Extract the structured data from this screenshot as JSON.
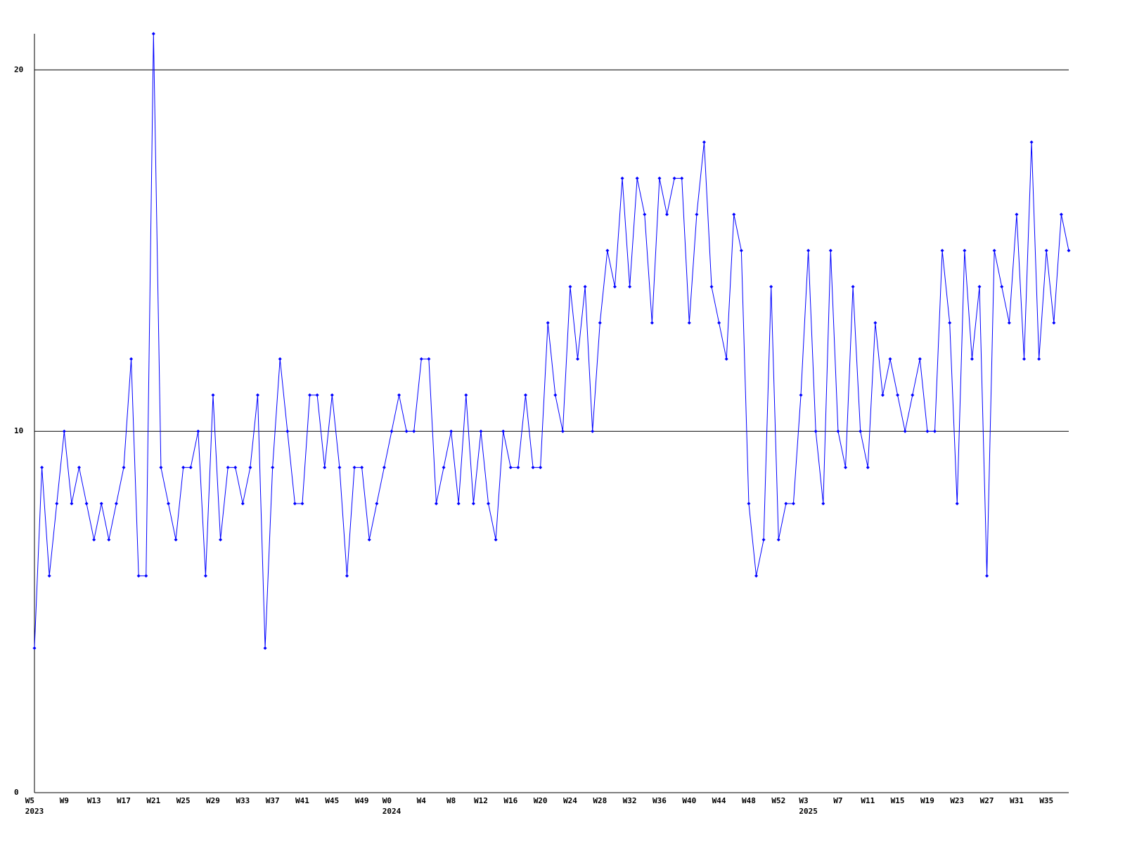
{
  "chart_data": {
    "type": "line",
    "categories": [
      "W5\n2023",
      null,
      null,
      null,
      "W9",
      null,
      null,
      null,
      "W13",
      null,
      null,
      null,
      "W17",
      null,
      null,
      null,
      "W21",
      null,
      null,
      null,
      "W25",
      null,
      null,
      null,
      "W29",
      null,
      null,
      null,
      "W33",
      null,
      null,
      null,
      "W37",
      null,
      null,
      null,
      "W41",
      null,
      null,
      null,
      "W45",
      null,
      null,
      null,
      "W49",
      null,
      null,
      null,
      "W0\n2024",
      null,
      null,
      null,
      "W4",
      null,
      null,
      null,
      "W8",
      null,
      null,
      null,
      "W12",
      null,
      null,
      null,
      "W16",
      null,
      null,
      null,
      "W20",
      null,
      null,
      null,
      "W24",
      null,
      null,
      null,
      "W28",
      null,
      null,
      null,
      "W32",
      null,
      null,
      null,
      "W36",
      null,
      null,
      null,
      "W40",
      null,
      null,
      null,
      "W44",
      null,
      null,
      null,
      "W48",
      null,
      null,
      null,
      "W52",
      null,
      null,
      null,
      "W3\n2025",
      null,
      null,
      null,
      "W7",
      null,
      null,
      null,
      "W11",
      null,
      null,
      null,
      "W15",
      null,
      null,
      null,
      "W19",
      null,
      null,
      null,
      "W23",
      null,
      null,
      null,
      "W27",
      null,
      null,
      null,
      "W31",
      null,
      null,
      null,
      "W35",
      null,
      null,
      null
    ],
    "series": [
      {
        "color": "#0000ff",
        "values": [
          4,
          9,
          6,
          8,
          10,
          8,
          9,
          8,
          7,
          8,
          7,
          8,
          9,
          12,
          6,
          6,
          21,
          9,
          8,
          7,
          9,
          9,
          10,
          6,
          11,
          7,
          9,
          9,
          8,
          9,
          11,
          4,
          9,
          12,
          10,
          8,
          8,
          11,
          11,
          9,
          11,
          9,
          6,
          9,
          9,
          7,
          8,
          9,
          10,
          11,
          10,
          10,
          12,
          12,
          8,
          9,
          10,
          8,
          11,
          8,
          10,
          8,
          7,
          10,
          9,
          9,
          11,
          9,
          9,
          13,
          11,
          10,
          14,
          12,
          14,
          10,
          13,
          15,
          14,
          17,
          14,
          17,
          16,
          13,
          17,
          16,
          17,
          17,
          13,
          16,
          18,
          14,
          13,
          12,
          16,
          15,
          8,
          6,
          7,
          14,
          7,
          8,
          8,
          11,
          15,
          10,
          8,
          15,
          10,
          9,
          14,
          10,
          9,
          13,
          11,
          12,
          11,
          10,
          11,
          12,
          10,
          10,
          15,
          13,
          8,
          15,
          12,
          14,
          6,
          15,
          14,
          13,
          16,
          12,
          18,
          12,
          15,
          13,
          16,
          15
        ]
      }
    ],
    "ylim": [
      0,
      21
    ],
    "yticks": [
      0,
      10,
      20
    ],
    "grid": true
  }
}
